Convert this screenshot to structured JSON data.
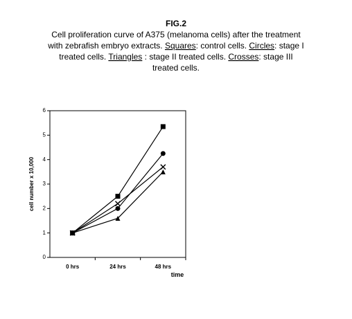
{
  "chart_data": {
    "type": "line",
    "title": "FIG.2",
    "caption": [
      [
        {
          "text": "Cell proliferation curve of A375 (melanoma cells) after the treatment",
          "underline": false
        }
      ],
      [
        {
          "text": "with zebrafish embryo extracts. ",
          "underline": false
        },
        {
          "text": "Squares",
          "underline": true
        },
        {
          "text": ": control cells. ",
          "underline": false
        },
        {
          "text": "Circles",
          "underline": true
        },
        {
          "text": ": stage I",
          "underline": false
        }
      ],
      [
        {
          "text": "treated cells. ",
          "underline": false
        },
        {
          "text": "Triangles",
          "underline": true
        },
        {
          "text": " : stage II treated cells. ",
          "underline": false
        },
        {
          "text": "Crosses",
          "underline": true
        },
        {
          "text": ": stage III",
          "underline": false
        }
      ],
      [
        {
          "text": "treated cells.",
          "underline": false
        }
      ]
    ],
    "x_label": "time",
    "y_label": "cell number x 10,000",
    "categories": [
      "0 hrs",
      "24 hrs",
      "48 hrs"
    ],
    "series": [
      {
        "marker": "square",
        "color": "#000000",
        "values": [
          1,
          2.5,
          5.35
        ]
      },
      {
        "marker": "circle",
        "color": "#000000",
        "values": [
          1,
          2.0,
          4.25
        ]
      },
      {
        "marker": "triangle",
        "color": "#000000",
        "values": [
          1,
          1.6,
          3.5
        ]
      },
      {
        "marker": "cross",
        "color": "#000000",
        "values": [
          1,
          2.2,
          3.7
        ]
      }
    ],
    "ylim": [
      0,
      6
    ],
    "yticks": [
      0,
      1,
      2,
      3,
      4,
      5,
      6
    ]
  }
}
